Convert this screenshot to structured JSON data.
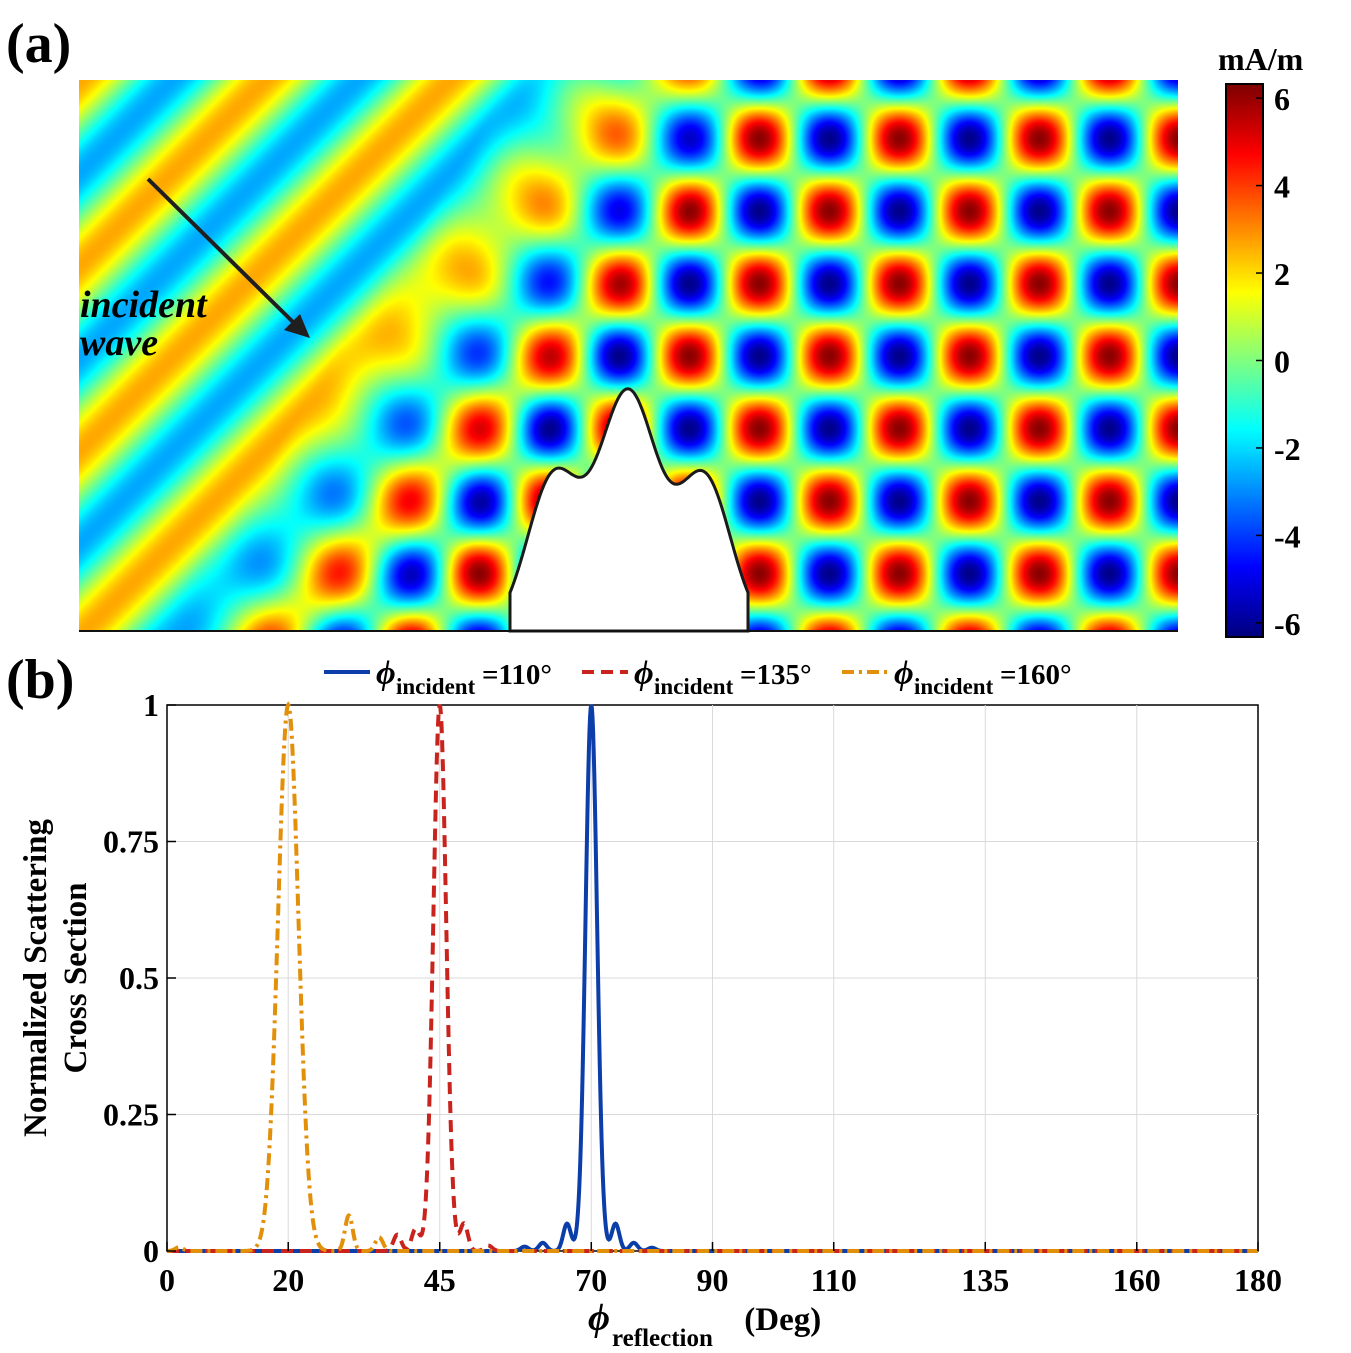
{
  "panel_a": {
    "label": "(a)",
    "annotation_line1": "incident",
    "annotation_line2": "wave",
    "colorbar": {
      "unit": "mA/m",
      "range": [
        -6.3,
        6.3
      ],
      "ticks": [
        "6",
        "4",
        "2",
        "0",
        "-2",
        "-4",
        "-6"
      ],
      "tick_values": [
        6,
        4,
        2,
        0,
        -2,
        -4,
        -6
      ],
      "colormap": "jet"
    }
  },
  "panel_b": {
    "label": "(b)",
    "ylabel_line1": "Normalized Scattering",
    "ylabel_line2": "Cross Section",
    "xlabel_symbol": "ϕ",
    "xlabel_sub": "reflection",
    "xlabel_rest": " (Deg)",
    "legend": [
      {
        "symbol": "ϕ",
        "sub": "incident",
        "text": "=110°",
        "color": "#0b3ea8",
        "dash": "solid"
      },
      {
        "symbol": "ϕ",
        "sub": "incident",
        "text": "=135°",
        "color": "#c8231c",
        "dash": "dashed"
      },
      {
        "symbol": "ϕ",
        "sub": "incident",
        "text": "=160°",
        "color": "#e28f0a",
        "dash": "dashdot"
      }
    ]
  },
  "chart_data": {
    "type": "line",
    "x_ticks": [
      0,
      20,
      45,
      70,
      90,
      110,
      135,
      160,
      180
    ],
    "x_tick_labels": [
      "0",
      "20",
      "45",
      "70",
      "90",
      "110",
      "135",
      "160",
      "180"
    ],
    "y_ticks": [
      0,
      0.25,
      0.5,
      0.75,
      1
    ],
    "y_tick_labels": [
      "0",
      "0.25",
      "0.5",
      "0.75",
      "1"
    ],
    "xlim": [
      0,
      180
    ],
    "ylim": [
      0,
      1
    ],
    "grid": true,
    "legend_position": "top-outside",
    "series": [
      {
        "name": "ϕincident=110°",
        "peak_x": 70,
        "peak_value": 1.0,
        "sidelobes": [
          [
            66,
            0.05
          ],
          [
            74,
            0.05
          ],
          [
            62,
            0.015
          ],
          [
            77,
            0.015
          ],
          [
            59,
            0.008
          ],
          [
            80,
            0.006
          ]
        ]
      },
      {
        "name": "ϕincident=135°",
        "peak_x": 45,
        "peak_value": 1.0,
        "sidelobes": [
          [
            49,
            0.05
          ],
          [
            41,
            0.04
          ],
          [
            38,
            0.03
          ],
          [
            53,
            0.01
          ]
        ]
      },
      {
        "name": "ϕincident=160°",
        "peak_x": 20,
        "peak_value": 1.0,
        "sidelobes": [
          [
            30,
            0.065
          ],
          [
            35,
            0.025
          ],
          [
            2,
            0.007
          ]
        ]
      }
    ]
  }
}
